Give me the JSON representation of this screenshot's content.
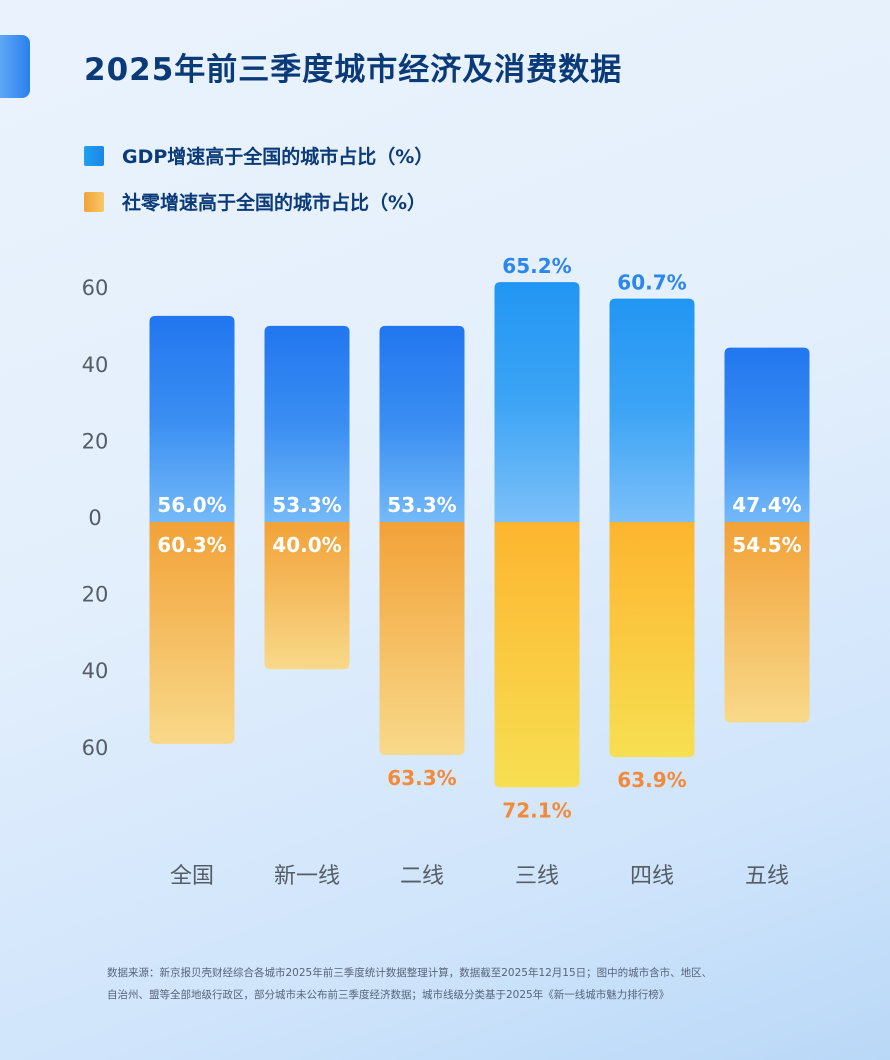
{
  "title": "2025年前三季度城市经济及消费数据",
  "colors": {
    "gdp_top": "#2276ef",
    "gdp_bottom": "#6fb8f7",
    "retail_top": "#f2a238",
    "retail_bottom": "#f8d98a",
    "retail_top_alt": "#fdb52f",
    "retail_bottom_alt": "#f7de4f",
    "outside_gdp_label": "#2b86ef",
    "outside_retail_label": "#f28a3a",
    "title": "#0b3a78"
  },
  "chart_data": {
    "type": "bar",
    "layout": "diverging",
    "title": "2025年前三季度城市经济及消费数据",
    "categories": [
      "全国",
      "新一线",
      "二线",
      "三线",
      "四线",
      "五线"
    ],
    "series": [
      {
        "name": "GDP增速高于全国的城市占比（%）",
        "direction": "up",
        "values": [
          56.0,
          53.3,
          53.3,
          65.2,
          60.7,
          47.4
        ],
        "labels": [
          "56.0%",
          "53.3%",
          "53.3%",
          "65.2%",
          "60.7%",
          "47.4%"
        ]
      },
      {
        "name": "社零增速高于全国的城市占比（%）",
        "direction": "down",
        "values": [
          60.3,
          40.0,
          63.3,
          72.1,
          63.9,
          54.5
        ],
        "labels": [
          "60.3%",
          "40.0%",
          "63.3%",
          "72.1%",
          "63.9%",
          "54.5%"
        ]
      }
    ],
    "yticks": [
      60,
      40,
      20,
      0,
      20,
      40,
      60
    ],
    "ylim": [
      -60,
      60
    ],
    "grid": false,
    "legend_position": "top-left"
  },
  "footer": {
    "line1": "数据来源：新京报贝壳财经综合各城市2025年前三季度统计数据整理计算，数据截至2025年12月15日；图中的城市含市、地区、",
    "line2": "自治州、盟等全部地级行政区，部分城市未公布前三季度经济数据；城市线级分类基于2025年《新一线城市魅力排行榜》"
  }
}
